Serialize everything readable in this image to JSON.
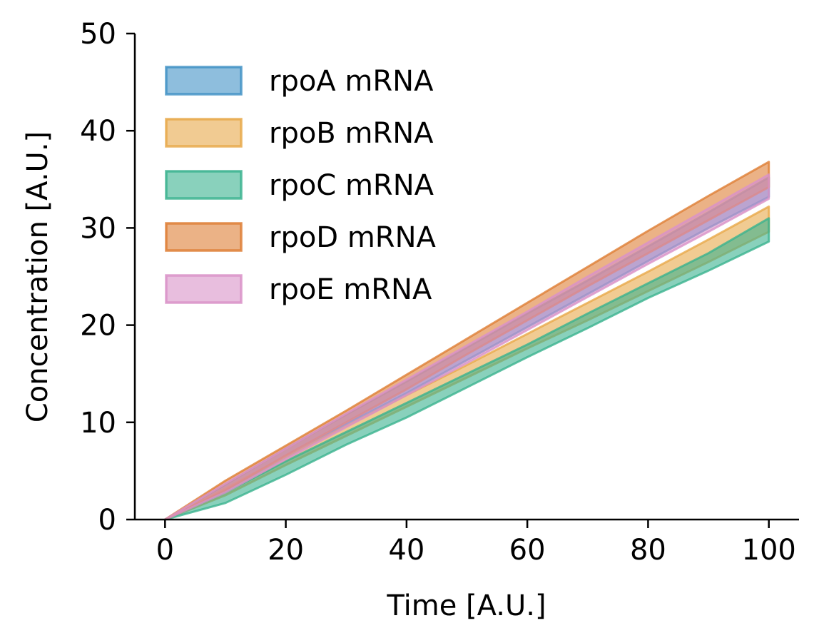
{
  "chart_data": {
    "type": "area",
    "xlabel": "Time [A.U.]",
    "ylabel": "Concentration [A.U.]",
    "xlim": [
      -5,
      105
    ],
    "ylim": [
      0,
      50
    ],
    "xticks": [
      0,
      20,
      40,
      60,
      80,
      100
    ],
    "yticks": [
      0,
      10,
      20,
      30,
      40,
      50
    ],
    "xtick_labels": [
      "0",
      "20",
      "40",
      "60",
      "80",
      "100"
    ],
    "ytick_labels": [
      "0",
      "10",
      "20",
      "30",
      "40",
      "50"
    ],
    "grid": false,
    "legend_position": "top-left",
    "x": [
      0,
      10,
      20,
      30,
      40,
      50,
      60,
      70,
      80,
      90,
      100
    ],
    "series": [
      {
        "name": "rpoA mRNA",
        "color": "#4393c6",
        "lower": [
          0,
          2.9,
          6.4,
          9.8,
          13.0,
          16.4,
          19.8,
          23.2,
          26.6,
          30.0,
          33.2
        ],
        "upper": [
          0,
          3.6,
          7.3,
          10.8,
          14.2,
          17.7,
          21.2,
          24.6,
          28.1,
          31.6,
          35.2
        ]
      },
      {
        "name": "rpoB mRNA",
        "color": "#e8a94a",
        "lower": [
          0,
          2.5,
          5.6,
          8.6,
          11.6,
          14.6,
          17.6,
          20.5,
          23.5,
          26.5,
          29.6
        ],
        "upper": [
          0,
          3.2,
          6.5,
          9.6,
          12.8,
          15.9,
          19.1,
          22.3,
          25.5,
          28.8,
          32.2
        ]
      },
      {
        "name": "rpoC mRNA",
        "color": "#3bb38f",
        "lower": [
          0,
          1.7,
          4.6,
          7.7,
          10.5,
          13.6,
          16.7,
          19.7,
          22.8,
          25.6,
          28.6
        ],
        "upper": [
          0,
          2.8,
          6.0,
          9.0,
          12.0,
          15.0,
          18.0,
          21.2,
          24.3,
          27.4,
          31.0
        ]
      },
      {
        "name": "rpoD mRNA",
        "color": "#de7e35",
        "lower": [
          0,
          3.0,
          6.6,
          10.0,
          13.4,
          17.0,
          20.5,
          24.0,
          27.4,
          30.8,
          34.2
        ],
        "upper": [
          0,
          4.0,
          7.6,
          11.2,
          14.9,
          18.6,
          22.3,
          26.0,
          29.7,
          33.3,
          36.8
        ]
      },
      {
        "name": "rpoE mRNA",
        "color": "#d992c8",
        "lower": [
          0,
          2.8,
          6.2,
          9.5,
          12.8,
          16.1,
          19.5,
          22.9,
          26.3,
          29.6,
          33.0
        ],
        "upper": [
          0,
          3.7,
          7.3,
          10.9,
          14.4,
          17.9,
          21.4,
          25.0,
          28.5,
          32.0,
          35.5
        ]
      }
    ]
  }
}
